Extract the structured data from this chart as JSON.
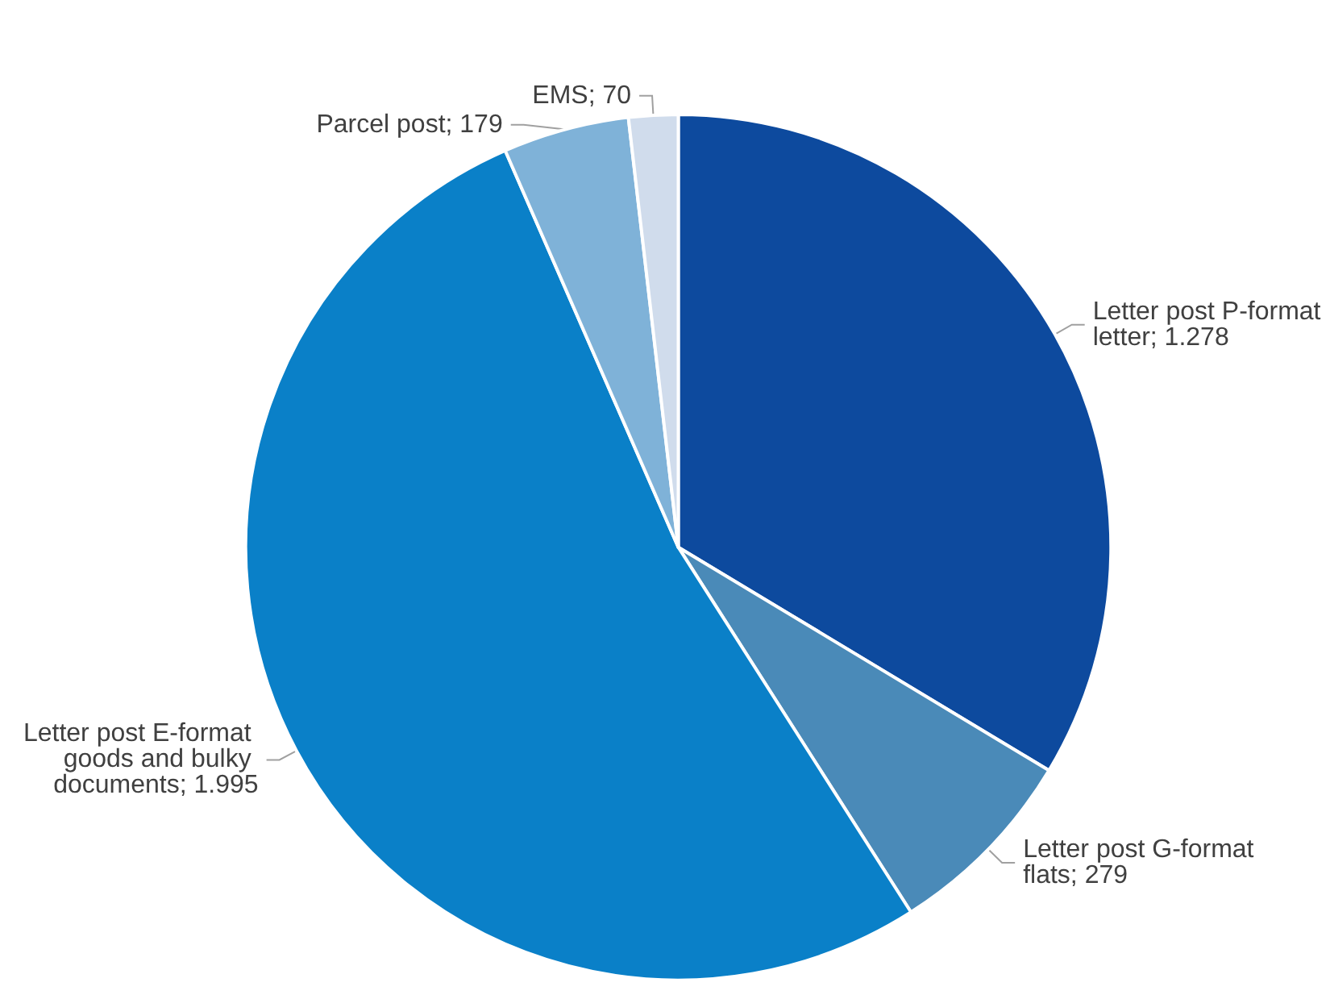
{
  "chart_data": {
    "type": "pie",
    "categories": [
      "Letter post P-format letter",
      "Letter post G-format flats",
      "Letter post E-format goods and bulky documents",
      "Parcel post",
      "EMS"
    ],
    "values": [
      1278,
      279,
      1995,
      179,
      70
    ],
    "value_labels": [
      "1.278",
      "279",
      "1.995",
      "179",
      "70"
    ],
    "colors": [
      "#0d4a9e",
      "#4a8ab8",
      "#0a80c8",
      "#7fb2d8",
      "#d0dcec"
    ],
    "legend": false
  }
}
